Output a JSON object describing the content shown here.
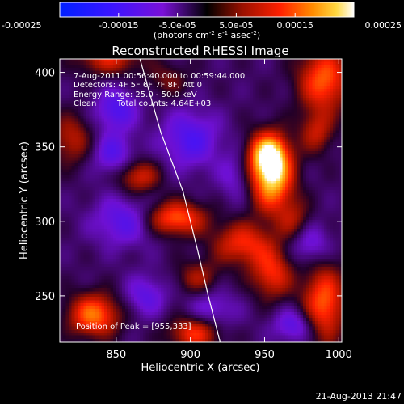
{
  "chart_data": {
    "type": "heatmap",
    "title": "Reconstructed RHESSI Image",
    "xlabel": "Heliocentric X (arcsec)",
    "ylabel": "Heliocentric Y (arcsec)",
    "xlim": [
      812,
      1002
    ],
    "ylim": [
      219,
      409
    ],
    "x_ticks": [
      850,
      900,
      950,
      1000
    ],
    "y_ticks": [
      250,
      300,
      350,
      400
    ],
    "x_tick_labels": [
      "850",
      "900",
      "950",
      "1000"
    ],
    "y_tick_labels": [
      "250",
      "300",
      "350",
      "400"
    ],
    "colorbar": {
      "min": -0.00025,
      "max": 0.00025,
      "ticks": [
        -0.00025,
        -0.00015,
        -5e-05,
        5e-05,
        0.00015,
        0.00025
      ],
      "tick_labels": [
        "-0.00025",
        "-0.00015",
        "-5.0e-05",
        "5.0e-05",
        "0.00015",
        "0.00025"
      ],
      "unit_prefix": "(photons cm",
      "unit_sup1": "-2",
      "unit_mid": " s",
      "unit_sup2": "-1",
      "unit_suffix": " asec",
      "unit_sup3": "-2",
      "unit_close": ")"
    },
    "annotations": {
      "time": "7-Aug-2011 00:56:40.000 to 00:59:44.000",
      "detectors": "Detectors: 4F 5F 6F 7F 8F, Att 0",
      "energy": "Energy Range: 25.0 - 50.0 keV",
      "clean": "Clean",
      "counts": "Total counts: 4.64E+03",
      "peak": "Position of Peak = [955,333]"
    },
    "peak": [
      955,
      333
    ],
    "sources": [
      {
        "x": 955,
        "y": 330,
        "amp": 1.0,
        "sx": 10,
        "sy": 16
      },
      {
        "x": 952,
        "y": 345,
        "amp": 0.75,
        "sx": 9,
        "sy": 10
      },
      {
        "x": 935,
        "y": 285,
        "amp": 0.55,
        "sx": 14,
        "sy": 10
      },
      {
        "x": 955,
        "y": 265,
        "amp": 0.55,
        "sx": 10,
        "sy": 12
      },
      {
        "x": 990,
        "y": 395,
        "amp": 0.7,
        "sx": 12,
        "sy": 15
      },
      {
        "x": 985,
        "y": 360,
        "amp": 0.4,
        "sx": 8,
        "sy": 10
      },
      {
        "x": 990,
        "y": 245,
        "amp": 0.7,
        "sx": 10,
        "sy": 18
      },
      {
        "x": 835,
        "y": 237,
        "amp": 0.75,
        "sx": 12,
        "sy": 10
      },
      {
        "x": 890,
        "y": 302,
        "amp": 0.7,
        "sx": 14,
        "sy": 8
      },
      {
        "x": 865,
        "y": 330,
        "amp": 0.5,
        "sx": 10,
        "sy": 8
      },
      {
        "x": 903,
        "y": 225,
        "amp": 0.6,
        "sx": 12,
        "sy": 8
      },
      {
        "x": 905,
        "y": 262,
        "amp": 0.35,
        "sx": 10,
        "sy": 8
      },
      {
        "x": 845,
        "y": 410,
        "amp": 0.5,
        "sx": 15,
        "sy": 8
      },
      {
        "x": 820,
        "y": 355,
        "amp": 0.4,
        "sx": 10,
        "sy": 12
      },
      {
        "x": 885,
        "y": 395,
        "amp": 0.25,
        "sx": 10,
        "sy": 8
      },
      {
        "x": 970,
        "y": 300,
        "amp": 0.35,
        "sx": 8,
        "sy": 10
      },
      {
        "x": 850,
        "y": 375,
        "amp": -0.45,
        "sx": 10,
        "sy": 10
      },
      {
        "x": 848,
        "y": 345,
        "amp": -0.4,
        "sx": 10,
        "sy": 10
      },
      {
        "x": 900,
        "y": 355,
        "amp": -0.45,
        "sx": 14,
        "sy": 14
      },
      {
        "x": 855,
        "y": 300,
        "amp": -0.4,
        "sx": 15,
        "sy": 12
      },
      {
        "x": 930,
        "y": 330,
        "amp": -0.25,
        "sx": 8,
        "sy": 12
      },
      {
        "x": 980,
        "y": 285,
        "amp": -0.35,
        "sx": 10,
        "sy": 10
      },
      {
        "x": 970,
        "y": 230,
        "amp": -0.4,
        "sx": 10,
        "sy": 8
      },
      {
        "x": 915,
        "y": 240,
        "amp": -0.3,
        "sx": 12,
        "sy": 10
      },
      {
        "x": 870,
        "y": 250,
        "amp": -0.35,
        "sx": 10,
        "sy": 10
      }
    ],
    "limb": [
      [
        866,
        409
      ],
      [
        880,
        360
      ],
      [
        895,
        320
      ],
      [
        905,
        280
      ],
      [
        912,
        250
      ],
      [
        920,
        219
      ]
    ]
  },
  "footer": {
    "timestamp": "21-Aug-2013 21:47"
  }
}
